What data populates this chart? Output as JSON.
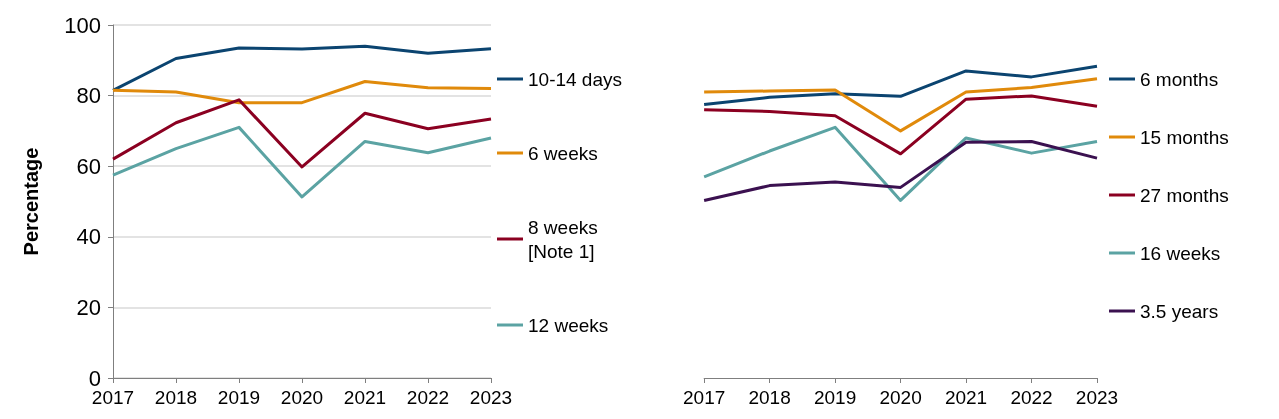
{
  "chart_data": [
    {
      "type": "line",
      "ylabel": "Percentage",
      "categories": [
        "2017",
        "2018",
        "2019",
        "2020",
        "2021",
        "2022",
        "2023"
      ],
      "ylim": [
        0,
        100
      ],
      "yticks": [
        0,
        20,
        40,
        60,
        80,
        100
      ],
      "grid": "y",
      "legend": "right",
      "line_style": "solid",
      "series": [
        {
          "name": "10-14 days",
          "color": "#0b4470",
          "values": [
            81.5,
            90.5,
            93.5,
            93.2,
            94,
            92,
            93.3
          ]
        },
        {
          "name": "6 weeks",
          "color": "#e08a0b",
          "values": [
            81.5,
            81,
            78,
            78,
            84,
            82.2,
            82
          ]
        },
        {
          "name": "8 weeks [Note 1]",
          "color": "#8b0021",
          "values": [
            62,
            72.3,
            78.8,
            59.8,
            75,
            70.6,
            73.4
          ]
        },
        {
          "name": "12 weeks",
          "color": "#5ba3a3",
          "values": [
            57.5,
            65,
            71,
            51.3,
            67,
            63.8,
            68
          ]
        }
      ]
    },
    {
      "type": "line",
      "categories": [
        "2017",
        "2018",
        "2019",
        "2020",
        "2021",
        "2022",
        "2023"
      ],
      "ylim": [
        0,
        100
      ],
      "tick_labels": "x",
      "grid": "y",
      "legend": "right",
      "line_style": "solid",
      "series": [
        {
          "name": "6 months",
          "color": "#0b4470",
          "values": [
            77.5,
            79.5,
            80.5,
            79.8,
            87,
            85.3,
            88.3
          ]
        },
        {
          "name": "15 months",
          "color": "#e08a0b",
          "values": [
            81,
            81.3,
            81.6,
            70,
            81,
            82.3,
            84.8
          ]
        },
        {
          "name": "27 months",
          "color": "#8b0021",
          "values": [
            76,
            75.5,
            74.3,
            63.5,
            79,
            79.9,
            77
          ]
        },
        {
          "name": "16 weeks",
          "color": "#5ba3a3",
          "values": [
            57,
            64.3,
            71,
            50.3,
            68,
            63.7,
            67
          ]
        },
        {
          "name": "3.5 years",
          "color": "#3b1150",
          "values": [
            50.3,
            54.5,
            55.5,
            54,
            66.8,
            67,
            62.3
          ]
        }
      ]
    }
  ]
}
